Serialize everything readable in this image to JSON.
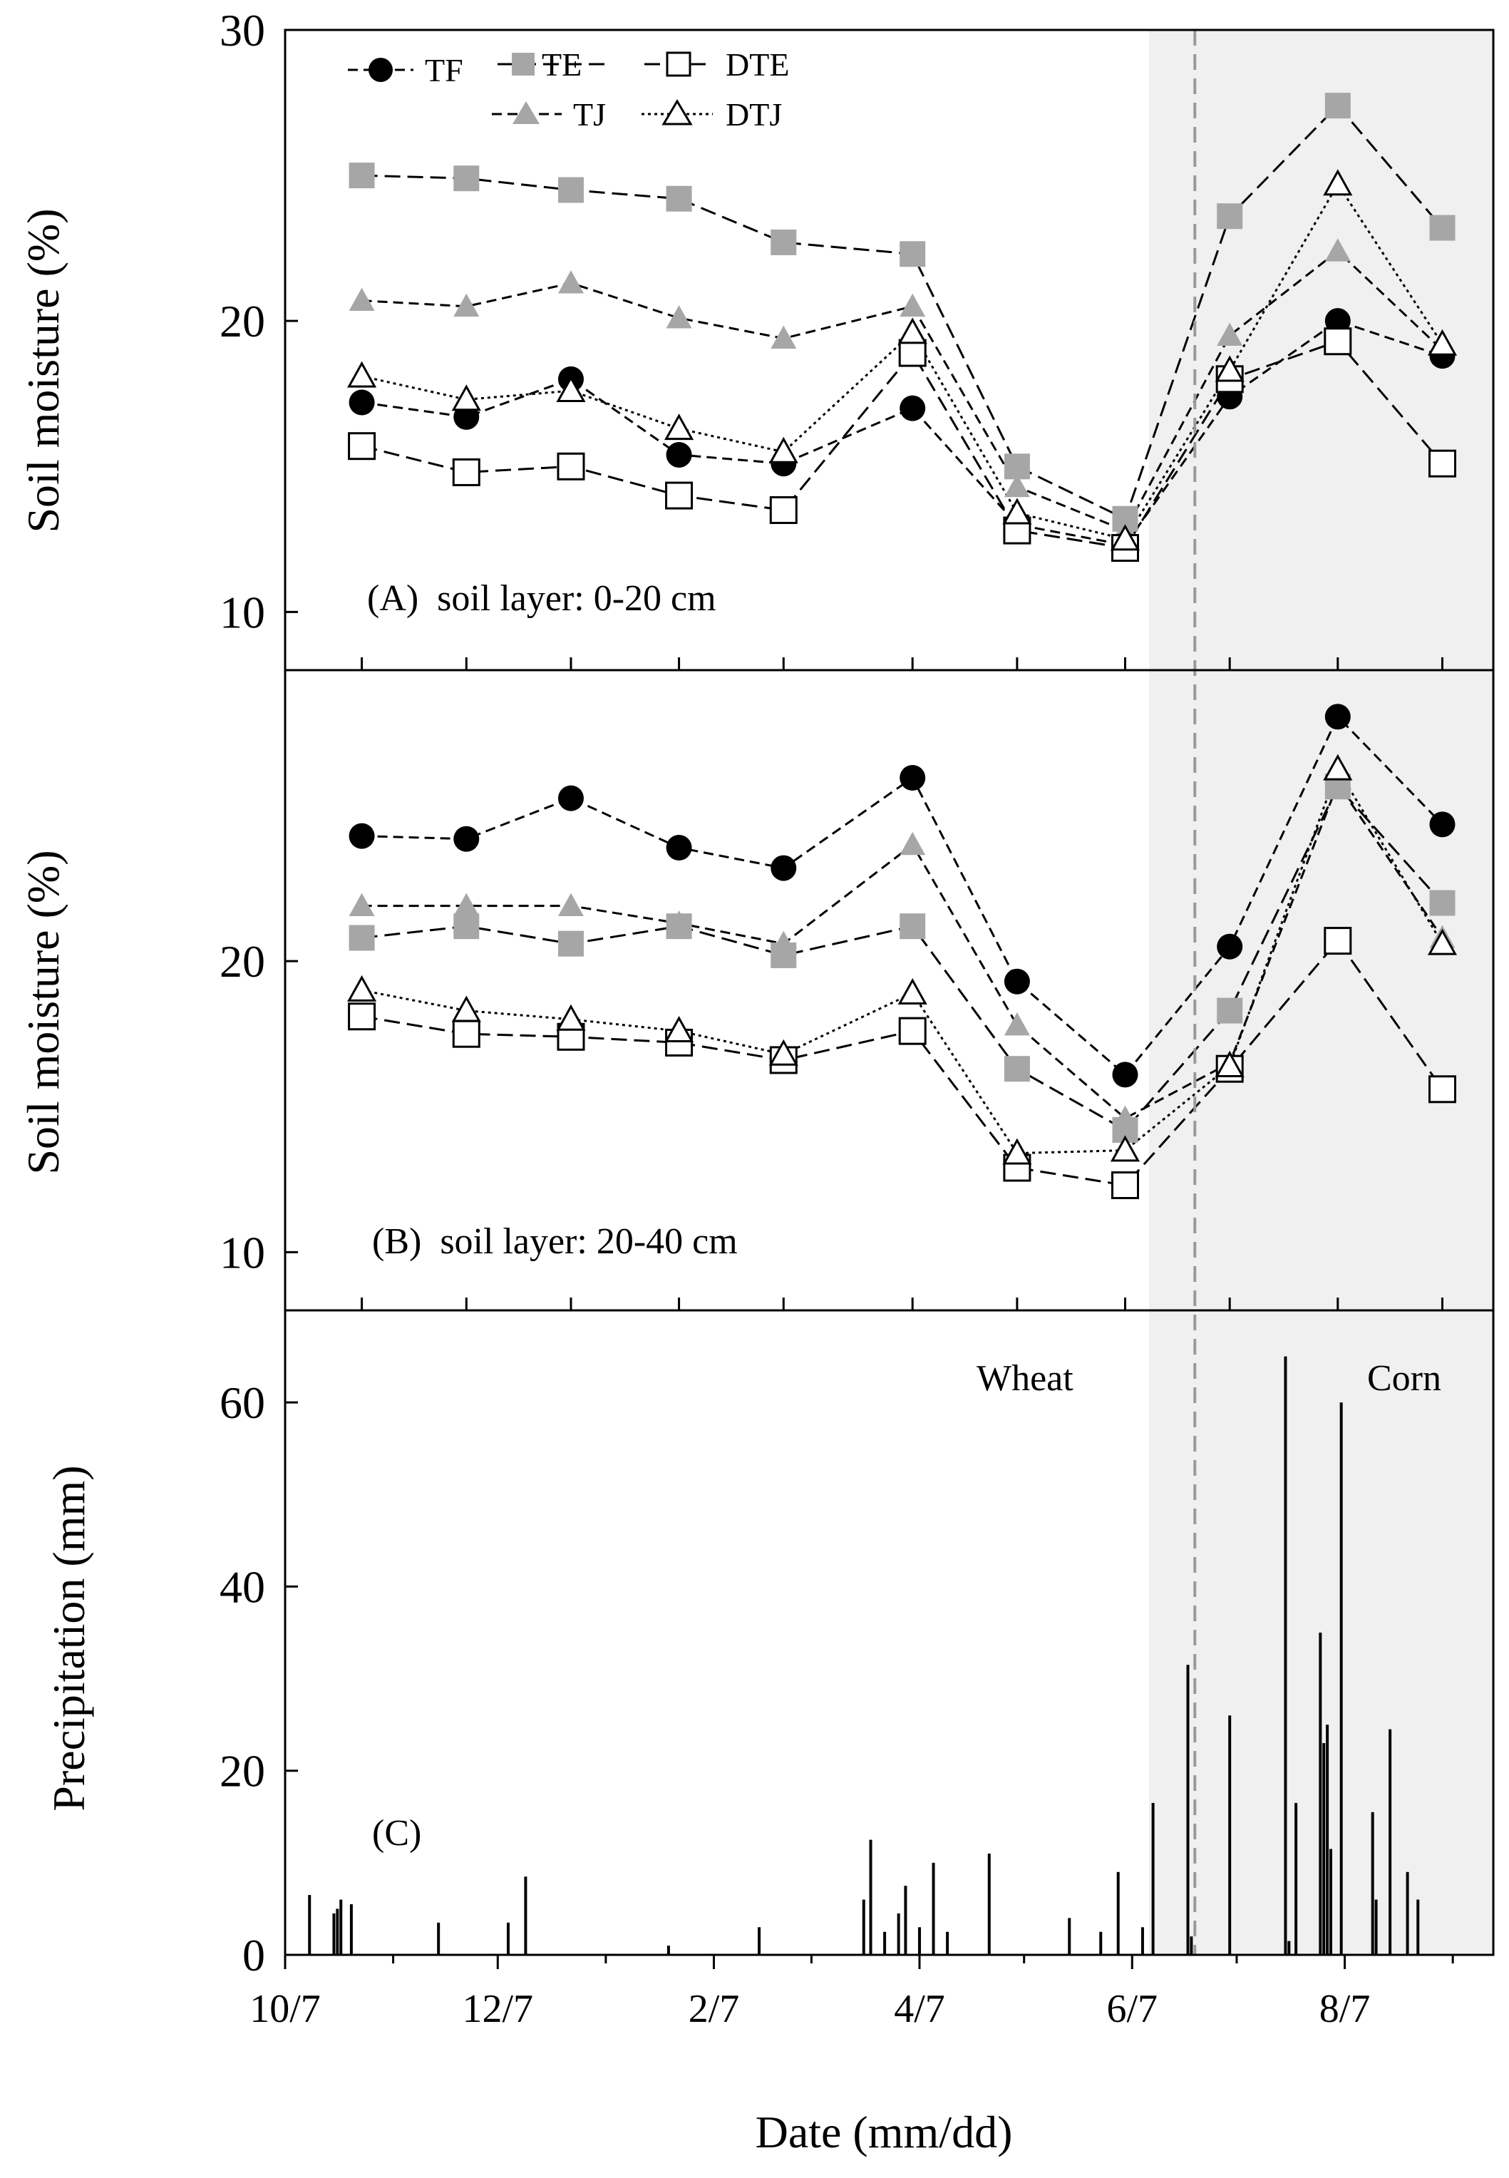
{
  "chart_data": {
    "type": "line",
    "x_ticks": [
      "10/7",
      "12/7",
      "2/7",
      "4/7",
      "6/7",
      "8/7"
    ],
    "x_minor_tick_labels": [],
    "xlabel": "Date  (mm/dd)",
    "divider_date": "6/25",
    "annotations": {
      "wheat": "Wheat",
      "corn": "Corn"
    },
    "legend": [
      {
        "key": "TF",
        "label": "TF"
      },
      {
        "key": "TE",
        "label": "TE"
      },
      {
        "key": "DTE",
        "label": "DTE"
      },
      {
        "key": "TJ",
        "label": "TJ"
      },
      {
        "key": "DTJ",
        "label": "DTJ"
      }
    ],
    "dates": [
      "10/29",
      "11/28",
      "12/28",
      "1/28",
      "2/27",
      "4/5",
      "5/5",
      "6/5",
      "7/5",
      "8/5",
      "9/4"
    ],
    "panels": [
      {
        "id": "A",
        "label": "(A)  soil layer: 0-20 cm",
        "ylabel": "Soil moisture  (%)",
        "ylim": [
          8,
          30
        ],
        "yticks": [
          "10",
          "20",
          "30"
        ],
        "series": [
          {
            "name": "TF",
            "values": [
              17.2,
              16.7,
              18.0,
              15.4,
              15.1,
              17.0,
              13.0,
              12.3,
              17.4,
              20.0,
              18.8
            ]
          },
          {
            "name": "TE",
            "values": [
              25.0,
              24.9,
              24.5,
              24.2,
              22.7,
              22.3,
              15.0,
              13.2,
              23.6,
              27.4,
              23.2
            ]
          },
          {
            "name": "TJ",
            "values": [
              20.7,
              20.5,
              21.3,
              20.1,
              19.4,
              20.5,
              14.3,
              12.8,
              19.5,
              22.4,
              19.0
            ]
          },
          {
            "name": "DTE",
            "values": [
              15.7,
              14.8,
              15.0,
              14.0,
              13.5,
              18.9,
              12.8,
              12.2,
              18.0,
              19.3,
              15.1
            ]
          },
          {
            "name": "DTJ",
            "values": [
              18.1,
              17.3,
              17.6,
              16.3,
              15.5,
              19.6,
              13.4,
              12.5,
              18.3,
              24.7,
              19.2
            ]
          }
        ]
      },
      {
        "id": "B",
        "label": "(B)  soil layer: 20-40 cm",
        "ylabel": "Soil moisture  (%)",
        "ylim": [
          8,
          30
        ],
        "yticks": [
          "10",
          "20"
        ],
        "series": [
          {
            "name": "TF",
            "values": [
              24.3,
              24.2,
              25.6,
              23.9,
              23.2,
              26.3,
              19.3,
              16.1,
              20.5,
              28.4,
              24.7
            ]
          },
          {
            "name": "TE",
            "values": [
              20.8,
              21.2,
              20.6,
              21.2,
              20.2,
              21.2,
              16.3,
              14.2,
              18.3,
              26.0,
              22.0
            ]
          },
          {
            "name": "TJ",
            "values": [
              21.9,
              21.9,
              21.9,
              21.3,
              20.6,
              24.0,
              17.8,
              14.6,
              16.5,
              26.1,
              20.8
            ]
          },
          {
            "name": "DTE",
            "values": [
              18.1,
              17.5,
              17.4,
              17.2,
              16.6,
              17.6,
              12.9,
              12.3,
              16.3,
              20.7,
              15.6
            ]
          },
          {
            "name": "DTJ",
            "values": [
              19.0,
              18.3,
              18.0,
              17.6,
              16.8,
              18.9,
              13.4,
              13.5,
              16.4,
              26.6,
              20.6
            ]
          }
        ]
      }
    ],
    "precipitation": {
      "label": "(C)",
      "ylabel": "Precipitation (mm)",
      "ylim": [
        0,
        70
      ],
      "yticks": [
        "0",
        "20",
        "40",
        "60"
      ],
      "bars": [
        [
          "10/14",
          6.5
        ],
        [
          "10/21",
          4.5
        ],
        [
          "10/22",
          5.0
        ],
        [
          "10/23",
          6.0
        ],
        [
          "10/26",
          5.5
        ],
        [
          "11/20",
          3.5
        ],
        [
          "12/10",
          3.5
        ],
        [
          "12/15",
          8.5
        ],
        [
          "1/25",
          1.0
        ],
        [
          "2/20",
          3.0
        ],
        [
          "3/22",
          6.0
        ],
        [
          "3/24",
          12.5
        ],
        [
          "3/28",
          2.5
        ],
        [
          "4/1",
          4.5
        ],
        [
          "4/3",
          7.5
        ],
        [
          "4/7",
          3.0
        ],
        [
          "4/11",
          10.0
        ],
        [
          "4/15",
          2.5
        ],
        [
          "4/27",
          11.0
        ],
        [
          "5/20",
          4.0
        ],
        [
          "5/29",
          2.5
        ],
        [
          "6/3",
          9.0
        ],
        [
          "6/10",
          3.0
        ],
        [
          "6/13",
          16.5
        ],
        [
          "6/23",
          31.5
        ],
        [
          "6/24",
          2.0
        ],
        [
          "7/5",
          26.0
        ],
        [
          "7/21",
          65.0
        ],
        [
          "7/22",
          1.5
        ],
        [
          "7/24",
          16.5
        ],
        [
          "7/31",
          35.0
        ],
        [
          "8/1",
          23.0
        ],
        [
          "8/2",
          25.0
        ],
        [
          "8/3",
          11.5
        ],
        [
          "8/6",
          60.0
        ],
        [
          "8/15",
          15.5
        ],
        [
          "8/16",
          6.0
        ],
        [
          "8/20",
          24.5
        ],
        [
          "8/25",
          9.0
        ],
        [
          "8/28",
          6.0
        ]
      ]
    }
  }
}
